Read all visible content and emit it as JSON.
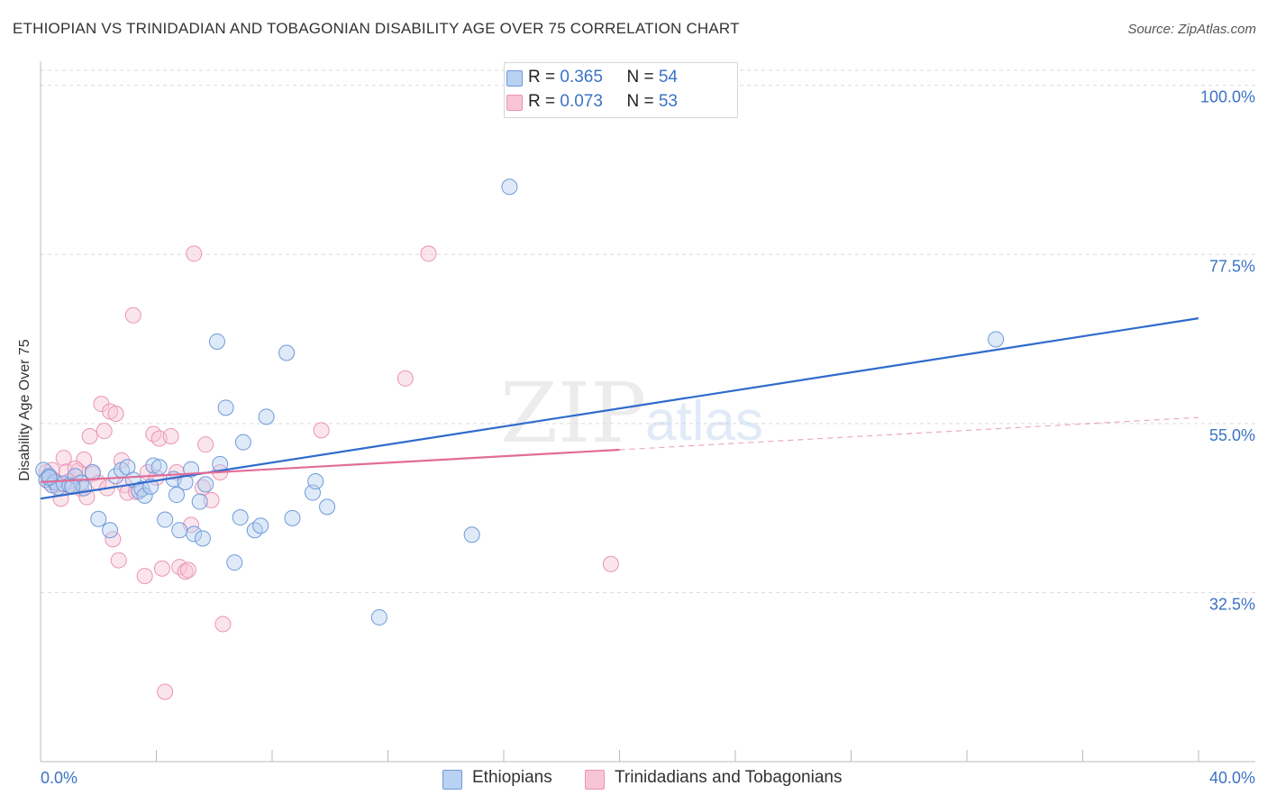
{
  "title": "ETHIOPIAN VS TRINIDADIAN AND TOBAGONIAN DISABILITY AGE OVER 75 CORRELATION CHART",
  "source": "Source: ZipAtlas.com",
  "watermark": {
    "zip": "ZIP",
    "atlas": "atlas"
  },
  "colors": {
    "blue": "#3b73c4",
    "blue_fill": "#b9d1f2",
    "blue_stroke": "#6f9ad8",
    "blue_line": "#2f6bcd",
    "pink": "#e8769e",
    "pink_fill": "#f7c5d6",
    "pink_stroke": "#eb94b3",
    "pink_line": "#e16d98",
    "grid": "#d9d9d9",
    "axis": "#bbbbbb",
    "tick_label": "#3b73c4"
  },
  "stats": {
    "r_label": "R = ",
    "n_label": "N = ",
    "rows": [
      {
        "r": "0.365",
        "n": "54"
      },
      {
        "r": "0.073",
        "n": "53"
      }
    ]
  },
  "chart_data": {
    "type": "scatter",
    "title": "ETHIOPIAN VS TRINIDADIAN AND TOBAGONIAN DISABILITY AGE OVER 75 CORRELATION CHART",
    "xlabel": "",
    "ylabel": "Disability Age Over 75",
    "xlim": [
      0,
      40
    ],
    "ylim": [
      10,
      102
    ],
    "x_tick_labels": [
      "0.0%",
      "40.0%"
    ],
    "y_ticks": [
      32.5,
      55.0,
      77.5,
      100.0
    ],
    "y_tick_labels": [
      "32.5%",
      "55.0%",
      "77.5%",
      "100.0%"
    ],
    "grid": true,
    "legend_position": "bottom-center",
    "series": [
      {
        "name": "Ethiopians",
        "r": 0.365,
        "n": 54,
        "trend": {
          "x": [
            0,
            40
          ],
          "y": [
            45.0,
            69.0
          ],
          "style": "solid"
        },
        "points": [
          [
            0.1,
            48.8
          ],
          [
            0.2,
            47.5
          ],
          [
            0.3,
            48.0
          ],
          [
            0.4,
            46.8
          ],
          [
            0.5,
            47.2
          ],
          [
            0.6,
            46.5
          ],
          [
            0.8,
            47.0
          ],
          [
            1.0,
            46.8
          ],
          [
            1.2,
            48.0
          ],
          [
            1.4,
            47.1
          ],
          [
            1.5,
            46.4
          ],
          [
            1.8,
            48.5
          ],
          [
            2.0,
            42.3
          ],
          [
            2.4,
            40.8
          ],
          [
            2.6,
            48.0
          ],
          [
            2.8,
            48.8
          ],
          [
            3.0,
            49.2
          ],
          [
            3.2,
            47.5
          ],
          [
            3.4,
            46.0
          ],
          [
            3.5,
            46.3
          ],
          [
            3.6,
            45.4
          ],
          [
            3.8,
            46.6
          ],
          [
            3.9,
            49.4
          ],
          [
            4.1,
            49.2
          ],
          [
            4.3,
            42.2
          ],
          [
            4.6,
            47.6
          ],
          [
            4.7,
            45.5
          ],
          [
            4.8,
            40.8
          ],
          [
            5.0,
            47.2
          ],
          [
            5.2,
            48.9
          ],
          [
            5.3,
            40.3
          ],
          [
            5.5,
            44.6
          ],
          [
            5.6,
            39.7
          ],
          [
            5.7,
            46.9
          ],
          [
            6.1,
            65.9
          ],
          [
            6.2,
            49.6
          ],
          [
            6.4,
            57.1
          ],
          [
            6.7,
            36.5
          ],
          [
            6.9,
            42.5
          ],
          [
            7.0,
            52.5
          ],
          [
            7.4,
            40.8
          ],
          [
            7.6,
            41.4
          ],
          [
            7.8,
            55.9
          ],
          [
            8.5,
            64.4
          ],
          [
            8.7,
            42.4
          ],
          [
            9.4,
            45.8
          ],
          [
            9.5,
            47.3
          ],
          [
            9.9,
            43.9
          ],
          [
            11.7,
            29.2
          ],
          [
            14.9,
            40.2
          ],
          [
            16.2,
            86.5
          ],
          [
            33.0,
            66.2
          ],
          [
            0.3,
            47.8
          ],
          [
            1.1,
            46.6
          ]
        ]
      },
      {
        "name": "Trinidadians and Tobagonians",
        "r": 0.073,
        "n": 53,
        "trend": {
          "x": [
            0,
            40
          ],
          "y": [
            47.2,
            55.8
          ],
          "solid_until": 20,
          "style": "solid-then-dashed"
        },
        "points": [
          [
            0.2,
            48.5
          ],
          [
            0.3,
            47.2
          ],
          [
            0.4,
            48.8
          ],
          [
            0.5,
            47.4
          ],
          [
            0.6,
            46.9
          ],
          [
            0.7,
            45.0
          ],
          [
            0.8,
            50.4
          ],
          [
            0.9,
            48.6
          ],
          [
            1.0,
            47.3
          ],
          [
            1.1,
            46.8
          ],
          [
            1.3,
            48.7
          ],
          [
            1.4,
            46.3
          ],
          [
            1.5,
            50.2
          ],
          [
            1.6,
            45.2
          ],
          [
            1.7,
            53.3
          ],
          [
            1.8,
            48.3
          ],
          [
            2.0,
            47.1
          ],
          [
            2.1,
            57.6
          ],
          [
            2.2,
            54.0
          ],
          [
            2.3,
            46.4
          ],
          [
            2.4,
            56.6
          ],
          [
            2.5,
            39.6
          ],
          [
            2.6,
            56.3
          ],
          [
            2.7,
            36.8
          ],
          [
            2.8,
            50.1
          ],
          [
            2.9,
            46.8
          ],
          [
            3.0,
            45.8
          ],
          [
            3.2,
            69.4
          ],
          [
            3.3,
            45.9
          ],
          [
            3.6,
            34.7
          ],
          [
            3.7,
            48.5
          ],
          [
            3.9,
            53.6
          ],
          [
            4.0,
            47.8
          ],
          [
            4.1,
            53.0
          ],
          [
            4.2,
            35.7
          ],
          [
            4.3,
            19.3
          ],
          [
            4.5,
            53.3
          ],
          [
            4.7,
            48.5
          ],
          [
            4.8,
            35.9
          ],
          [
            5.0,
            35.3
          ],
          [
            5.1,
            35.5
          ],
          [
            5.2,
            41.5
          ],
          [
            5.3,
            77.6
          ],
          [
            5.6,
            46.5
          ],
          [
            5.7,
            52.2
          ],
          [
            5.9,
            44.8
          ],
          [
            6.2,
            48.5
          ],
          [
            6.3,
            28.3
          ],
          [
            9.7,
            54.1
          ],
          [
            12.6,
            61.0
          ],
          [
            13.4,
            77.6
          ],
          [
            19.7,
            36.3
          ],
          [
            1.2,
            49.0
          ]
        ]
      }
    ]
  }
}
